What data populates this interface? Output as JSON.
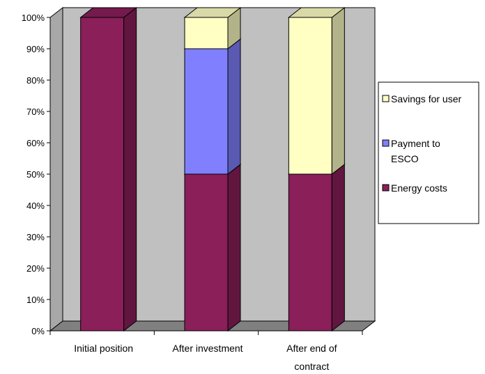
{
  "chart_data": {
    "type": "bar",
    "stacked": true,
    "three_d": true,
    "percent_stacked": true,
    "categories": [
      "Initial position",
      "After investment",
      "After end of contract"
    ],
    "category_label_lines": [
      [
        "Initial position"
      ],
      [
        "After investment"
      ],
      [
        "After end of",
        "contract"
      ]
    ],
    "series": [
      {
        "name": "Energy costs",
        "values": [
          100,
          50,
          50
        ],
        "color": "#8a1f5a"
      },
      {
        "name": "Payment to ESCO",
        "values": [
          0,
          40,
          0
        ],
        "color": "#8080ff"
      },
      {
        "name": "Savings for user",
        "values": [
          0,
          10,
          50
        ],
        "color": "#ffffc4"
      }
    ],
    "legend_order": [
      "Savings for user",
      "Payment to ESCO",
      "Energy costs"
    ],
    "legend_label_lines": {
      "Savings for user": [
        "Savings for user"
      ],
      "Payment to ESCO": [
        "Payment to",
        "ESCO"
      ],
      "Energy costs": [
        "Energy costs"
      ]
    },
    "y_ticks": [
      "0%",
      "10%",
      "20%",
      "30%",
      "40%",
      "50%",
      "60%",
      "70%",
      "80%",
      "90%",
      "100%"
    ],
    "ylim": [
      0,
      100
    ],
    "grid": false,
    "legend_position": "right",
    "title": "",
    "xlabel": "",
    "ylabel": "",
    "colors": {
      "plot_wall": "#c0c0c0",
      "floor": "#808080",
      "background": "#ffffff"
    }
  }
}
